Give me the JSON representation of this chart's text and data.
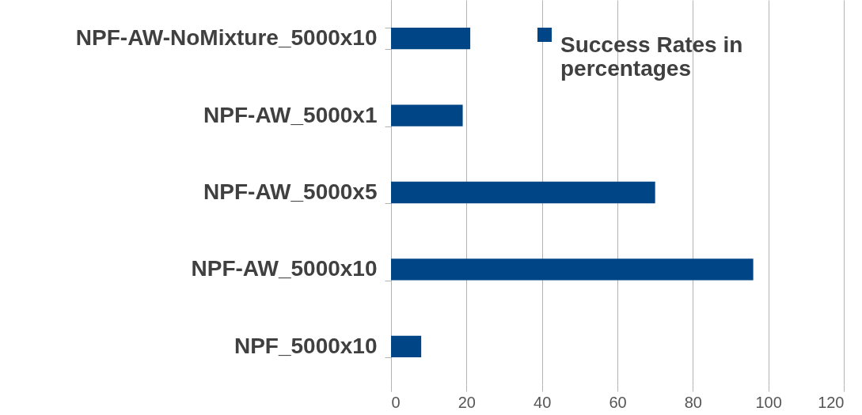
{
  "chart_data": {
    "type": "bar",
    "orientation": "horizontal",
    "categories": [
      "NPF-AW-NoMixture_5000x10",
      "NPF-AW_5000x1",
      "NPF-AW_5000x5",
      "NPF-AW_5000x10",
      "NPF_5000x10"
    ],
    "series": [
      {
        "name": "Success Rates in percentages",
        "color": "#004586",
        "values": [
          21,
          19,
          70,
          96,
          8
        ]
      }
    ],
    "xlim": [
      0,
      120
    ],
    "xticks": [
      0,
      20,
      40,
      60,
      80,
      100,
      120
    ],
    "grid": "x",
    "legend": "top right"
  }
}
